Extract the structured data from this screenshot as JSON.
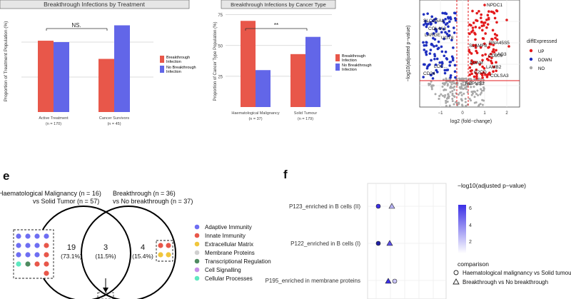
{
  "chart_data": [
    {
      "type": "bar",
      "title": "Breakthrough Infections by Treatment",
      "ylabel": "Proportion of Treatment Population (%)",
      "categories": [
        "Active Treatment",
        "Cancer Survivors"
      ],
      "category_n": [
        "(n = 170)",
        "(n = 45)"
      ],
      "series": [
        {
          "name": "Breakthrough Infection",
          "color": "#e8574a",
          "values": [
            51,
            38
          ]
        },
        {
          "name": "No Breakthrough Infection",
          "color": "#6266e8",
          "values": [
            50,
            62
          ]
        }
      ],
      "ylim": [
        0,
        75
      ],
      "significance": "NS.",
      "legend": [
        "Breakthrough",
        "Infection",
        "No Breakthrough",
        "Infection"
      ]
    },
    {
      "type": "bar",
      "title": "Breakthrough Infections by Cancer Type",
      "ylabel": "Proportion of Cancer Type Population (%)",
      "categories": [
        "Haematological Malignancy",
        "Solid Tumour"
      ],
      "category_n": [
        "(n = 37)",
        "(n = 179)"
      ],
      "series": [
        {
          "name": "Breakthrough Infection",
          "color": "#e8574a",
          "values": [
            70,
            43
          ]
        },
        {
          "name": "No Breakthrough Infection",
          "color": "#6266e8",
          "values": [
            30,
            57
          ]
        }
      ],
      "ticks": [
        "75",
        "50",
        "25"
      ],
      "ylim": [
        0,
        80
      ],
      "significance": "**",
      "legend": [
        "Breakthrough",
        "Infection",
        "No Breakthrough",
        "Infection"
      ]
    },
    {
      "type": "scatter",
      "xlabel": "log2 (fold−change)",
      "ylabel": "−log10(adjusted p−value)",
      "x_ticks": [
        "−1",
        "0",
        "1",
        "2"
      ],
      "legend_title": "diffExpressed",
      "legend": [
        {
          "label": "UP",
          "color": "#e31a1c"
        },
        {
          "label": "DOWN",
          "color": "#1f2fbf"
        },
        {
          "label": "NO",
          "color": "#a8a8a8"
        }
      ],
      "gene_labels": [
        "NPDC1",
        "SLCO5A1",
        "COL4A3",
        "LARGE",
        "UGT8",
        "RNA45S5",
        "SLAMF8",
        "CD209",
        "LAG3",
        "COLSA3",
        "LAMB2",
        "RBPMS2",
        "CD24",
        "LOC...",
        "ADAM",
        "C2CD"
      ]
    },
    {
      "type": "venn",
      "panel_label": "e",
      "set_labels": [
        "Haematological Malignancy (n = 16)",
        "vs Solid Tumor (n = 57)",
        "Breakthrough (n = 36)",
        "vs No breakthrough (n = 37)"
      ],
      "regions": [
        {
          "count": "19",
          "percent": "(73.1%)"
        },
        {
          "count": "3",
          "percent": "(11.5%)"
        },
        {
          "count": "4",
          "percent": "(15.4%)"
        }
      ],
      "categories": [
        {
          "label": "Adaptive Immunity",
          "color": "#6e6ef2"
        },
        {
          "label": "Innate Immunity",
          "color": "#e8574a"
        },
        {
          "label": "Extracellular Matrix",
          "color": "#f0c63c"
        },
        {
          "label": "Membrane Proteins",
          "color": "#d0d0d0"
        },
        {
          "label": "Transcriptional Regulation",
          "color": "#4f8a60"
        },
        {
          "label": "Cell Signalling",
          "color": "#c68fe8"
        },
        {
          "label": "Cellular Processes",
          "color": "#5fe8c0"
        }
      ]
    },
    {
      "type": "scatter",
      "panel_label": "f",
      "rows": [
        "P123_enriched in B cells (II)",
        "P122_enriched in B cells (I)",
        "P195_enriched in membrane proteins"
      ],
      "colorbar_title": "−log10(adjusted p−value)",
      "colorbar_ticks": [
        "6",
        "4",
        "2"
      ],
      "legend_title": "comparison",
      "legend": [
        {
          "label": "Haematological malignancy vs Solid tumour",
          "shape": "circle"
        },
        {
          "label": "Breakthrough vs No breakthrough",
          "shape": "triangle"
        }
      ]
    }
  ]
}
